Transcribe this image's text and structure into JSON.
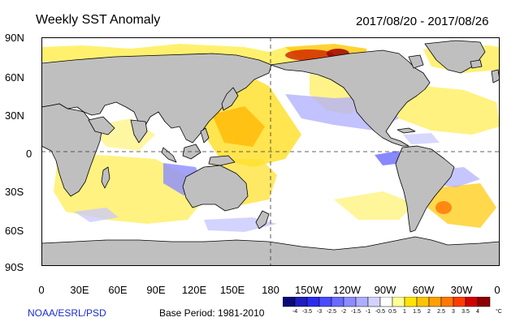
{
  "header": {
    "title": "Weekly SST Anomaly",
    "date_range": "2017/08/20 - 2017/08/26"
  },
  "map": {
    "lat_labels": [
      "90N",
      "60N",
      "30N",
      "0",
      "30S",
      "60S",
      "90S"
    ],
    "lon_labels": [
      "0",
      "30E",
      "60E",
      "90E",
      "120E",
      "150E",
      "180",
      "150W",
      "120W",
      "90W",
      "60W",
      "30W",
      "0"
    ],
    "land_color": "#bfbfbf",
    "ocean_color": "#ffffff",
    "coastline_color": "#000000"
  },
  "footer": {
    "credit": "NOAA/ESRL/PSD",
    "base_period": "Base Period: 1981-2010"
  },
  "colorbar": {
    "ticks": [
      "-4",
      "-3.5",
      "-3",
      "-2.5",
      "-2",
      "-1.5",
      "-1",
      "-0.5",
      "0.5",
      "1",
      "1.5",
      "2",
      "2.5",
      "3",
      "3.5",
      "4"
    ],
    "unit": "°C",
    "colors": [
      "#0a0a78",
      "#1e1ebe",
      "#2b2bf0",
      "#4a4aff",
      "#6a6aff",
      "#8c8cff",
      "#aeaeff",
      "#d2d2ff",
      "#ffffff",
      "#ffff99",
      "#ffe600",
      "#ffc400",
      "#ffa000",
      "#ff7800",
      "#ff3c00",
      "#d20000",
      "#8c0000"
    ]
  }
}
